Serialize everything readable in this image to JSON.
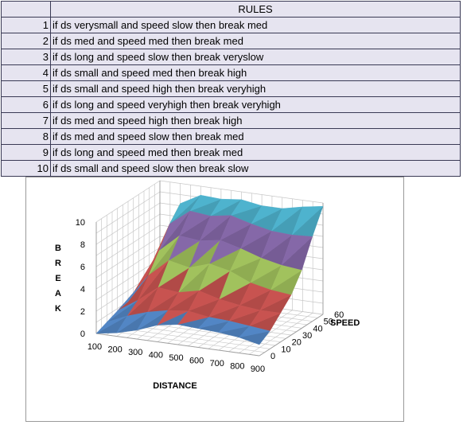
{
  "rules": {
    "header": "RULES",
    "items": [
      {
        "num": "1",
        "text": "if ds verysmall and speed slow then break med"
      },
      {
        "num": "2",
        "text": "if ds med and speed med then break med"
      },
      {
        "num": "3",
        "text": "if ds long and speed slow then break veryslow"
      },
      {
        "num": "4",
        "text": "if ds small and speed med then break high"
      },
      {
        "num": "5",
        "text": "if ds small and speed high then break veryhigh"
      },
      {
        "num": "6",
        "text": "if ds long and speed veryhigh then break veryhigh"
      },
      {
        "num": "7",
        "text": "if ds med and speed high then break high"
      },
      {
        "num": "8",
        "text": "if ds med and speed slow then break med"
      },
      {
        "num": "9",
        "text": "if ds long and speed med then break med"
      },
      {
        "num": "10",
        "text": "if ds small and speed slow then break slow"
      }
    ]
  },
  "chart_data": {
    "type": "surface",
    "xlabel": "DISTANCE",
    "ylabel": "SPEED",
    "zlabel": "BREAK",
    "x_ticks": [
      100,
      200,
      300,
      400,
      500,
      600,
      700,
      800,
      900
    ],
    "y_ticks": [
      0,
      10,
      20,
      30,
      40,
      50,
      60
    ],
    "z_ticks": [
      0,
      2,
      4,
      6,
      8,
      10
    ],
    "xlim": [
      100,
      900
    ],
    "ylim": [
      0,
      60
    ],
    "zlim": [
      0,
      10
    ],
    "band_colors": [
      "#4f81bd",
      "#c0504d",
      "#9bbb59",
      "#8064a2",
      "#4bacc6"
    ],
    "band_edges": [
      0,
      2,
      4,
      6,
      8,
      10
    ],
    "speed_values": [
      0,
      10,
      20,
      30,
      40,
      50,
      60
    ],
    "distance_values": [
      100,
      200,
      300,
      400,
      500,
      600,
      700,
      800,
      900
    ],
    "z": [
      [
        0.0,
        0.3,
        0.8,
        1.5,
        1.8,
        1.7,
        1.6,
        1.4,
        1.0
      ],
      [
        0.4,
        1.2,
        1.8,
        2.2,
        2.4,
        2.1,
        2.0,
        1.8,
        1.6
      ],
      [
        0.8,
        2.0,
        3.4,
        3.2,
        3.6,
        3.1,
        2.8,
        2.6,
        2.6
      ],
      [
        1.0,
        3.6,
        5.2,
        4.8,
        5.4,
        5.0,
        4.2,
        3.8,
        3.6
      ],
      [
        1.2,
        5.2,
        6.8,
        6.6,
        6.9,
        6.4,
        5.8,
        5.4,
        5.2
      ],
      [
        1.8,
        7.0,
        8.4,
        8.2,
        8.5,
        8.0,
        7.6,
        7.5,
        7.6
      ],
      [
        2.4,
        8.2,
        9.2,
        9.1,
        9.3,
        9.0,
        9.0,
        9.4,
        9.7
      ]
    ]
  }
}
